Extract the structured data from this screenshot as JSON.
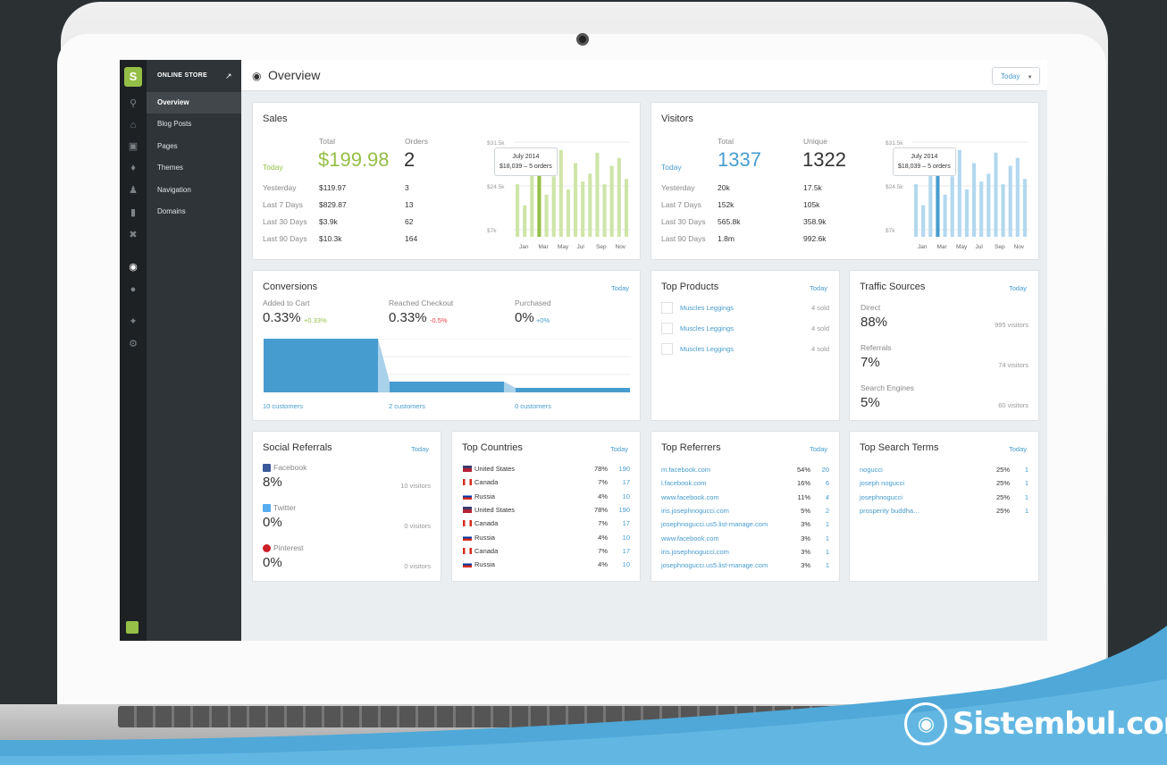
{
  "brand": {
    "watermark": "Sistembul.com"
  },
  "sidebar": {
    "header": "ONLINE STORE",
    "items": [
      {
        "label": "Overview"
      },
      {
        "label": "Blog Posts"
      },
      {
        "label": "Pages"
      },
      {
        "label": "Themes"
      },
      {
        "label": "Navigation"
      },
      {
        "label": "Domains"
      }
    ]
  },
  "topbar": {
    "title": "Overview",
    "range": "Today"
  },
  "sales": {
    "title": "Sales",
    "col_total": "Total",
    "col_orders": "Orders",
    "today_label": "Today",
    "today_total": "$199.98",
    "today_orders": "2",
    "rows": [
      {
        "label": "Yesterday",
        "total": "$119.97",
        "orders": "3"
      },
      {
        "label": "Last 7 Days",
        "total": "$829.87",
        "orders": "13"
      },
      {
        "label": "Last 30 Days",
        "total": "$3.9k",
        "orders": "62"
      },
      {
        "label": "Last 90 Days",
        "total": "$10.3k",
        "orders": "164"
      }
    ],
    "tooltip_title": "July 2014",
    "tooltip_value": "$18,039 – 5 orders"
  },
  "visitors": {
    "title": "Visitors",
    "col_total": "Total",
    "col_unique": "Unique",
    "today_label": "Today",
    "today_total": "1337",
    "today_unique": "1322",
    "rows": [
      {
        "label": "Yesterday",
        "total": "20k",
        "unique": "17.5k"
      },
      {
        "label": "Last 7 Days",
        "total": "152k",
        "unique": "105k"
      },
      {
        "label": "Last 30 Days",
        "total": "565.8k",
        "unique": "358.9k"
      },
      {
        "label": "Last 90 Days",
        "total": "1.8m",
        "unique": "992.6k"
      }
    ],
    "tooltip_title": "July 2014",
    "tooltip_value": "$18,039 – 5 orders"
  },
  "chart_data": [
    {
      "type": "bar",
      "title": "",
      "yticks": [
        "$31.5k",
        "$24.5k",
        "$7k"
      ],
      "xticks": [
        "Jan",
        "Mar",
        "May",
        "Jul",
        "Sep",
        "Nov"
      ],
      "highlight_index": 3,
      "color": "#95bf47",
      "values": [
        20,
        12,
        26,
        31,
        16,
        23,
        33,
        18,
        28,
        21,
        24,
        32,
        20,
        27,
        30,
        22
      ]
    },
    {
      "type": "bar",
      "title": "",
      "yticks": [
        "$31.5k",
        "$24.5k",
        "$7k"
      ],
      "xticks": [
        "Jan",
        "Mar",
        "May",
        "Jul",
        "Sep",
        "Nov"
      ],
      "highlight_index": 3,
      "color": "#479ccf",
      "values": [
        20,
        12,
        26,
        31,
        16,
        23,
        33,
        18,
        28,
        21,
        24,
        32,
        20,
        27,
        30,
        22
      ]
    },
    {
      "type": "area",
      "title": "Conversions",
      "categories": [
        "Added to Cart",
        "Reached Checkout",
        "Purchased"
      ],
      "values": [
        10,
        2,
        0
      ]
    }
  ],
  "conversions": {
    "title": "Conversions",
    "range": "Today",
    "steps": [
      {
        "label": "Added to Cart",
        "rate": "0.33%",
        "delta": "+0.33%",
        "delta_color": "#95bf47",
        "customers": "10 customers"
      },
      {
        "label": "Reached Checkout",
        "rate": "0.33%",
        "delta": "-0.5%",
        "delta_color": "#e44",
        "customers": "2 customers"
      },
      {
        "label": "Purchased",
        "rate": "0%",
        "delta": "+0%",
        "delta_color": "#479ccf",
        "customers": "0 customers"
      }
    ]
  },
  "top_products": {
    "title": "Top Products",
    "range": "Today",
    "items": [
      {
        "name": "Muscles Leggings",
        "sold": "4 sold"
      },
      {
        "name": "Muscles Leggings",
        "sold": "4 sold"
      },
      {
        "name": "Muscles Leggings",
        "sold": "4 sold"
      }
    ]
  },
  "traffic": {
    "title": "Traffic Sources",
    "range": "Today",
    "items": [
      {
        "label": "Direct",
        "pct": "88%",
        "visitors": "995 visitors"
      },
      {
        "label": "Referrals",
        "pct": "7%",
        "visitors": "74 visitors"
      },
      {
        "label": "Search Engines",
        "pct": "5%",
        "visitors": "60 visitors"
      }
    ]
  },
  "social": {
    "title": "Social Referrals",
    "range": "Today",
    "items": [
      {
        "label": "Facebook",
        "pct": "8%",
        "visitors": "10 visitors",
        "icon": "facebook-icon",
        "color": "#3b5998"
      },
      {
        "label": "Twitter",
        "pct": "0%",
        "visitors": "0 visitors",
        "icon": "twitter-icon",
        "color": "#55acee"
      },
      {
        "label": "Pinterest",
        "pct": "0%",
        "visitors": "0 visitors",
        "icon": "pinterest-icon",
        "color": "#cb2027"
      }
    ]
  },
  "countries": {
    "title": "Top Countries",
    "range": "Today",
    "items": [
      {
        "name": "United States",
        "pct": "78%",
        "count": "190",
        "flag": "us"
      },
      {
        "name": "Canada",
        "pct": "7%",
        "count": "17",
        "flag": "ca"
      },
      {
        "name": "Russia",
        "pct": "4%",
        "count": "10",
        "flag": "ru"
      },
      {
        "name": "United States",
        "pct": "78%",
        "count": "190",
        "flag": "us"
      },
      {
        "name": "Canada",
        "pct": "7%",
        "count": "17",
        "flag": "ca"
      },
      {
        "name": "Russia",
        "pct": "4%",
        "count": "10",
        "flag": "ru"
      },
      {
        "name": "Canada",
        "pct": "7%",
        "count": "17",
        "flag": "ca"
      },
      {
        "name": "Russia",
        "pct": "4%",
        "count": "10",
        "flag": "ru"
      }
    ]
  },
  "referrers": {
    "title": "Top Referrers",
    "range": "Today",
    "items": [
      {
        "site": "m.facebook.com",
        "pct": "54%",
        "count": "20"
      },
      {
        "site": "l.facebook.com",
        "pct": "16%",
        "count": "6"
      },
      {
        "site": "www.facebook.com",
        "pct": "11%",
        "count": "4"
      },
      {
        "site": "iris.josephnogucci.com",
        "pct": "5%",
        "count": "2"
      },
      {
        "site": "josephnogucci.us5.list-manage.com",
        "pct": "3%",
        "count": "1"
      },
      {
        "site": "www.facebook.com",
        "pct": "3%",
        "count": "1"
      },
      {
        "site": "iris.josephnogucci.com",
        "pct": "3%",
        "count": "1"
      },
      {
        "site": "josephnogucci.us5.list-manage.com",
        "pct": "3%",
        "count": "1"
      }
    ]
  },
  "search_terms": {
    "title": "Top Search Terms",
    "range": "Today",
    "items": [
      {
        "term": "nogucci",
        "pct": "25%",
        "count": "1"
      },
      {
        "term": "joseph nogucci",
        "pct": "25%",
        "count": "1"
      },
      {
        "term": "josephnogucci",
        "pct": "25%",
        "count": "1"
      },
      {
        "term": "prosperity buddha…",
        "pct": "25%",
        "count": "1"
      }
    ]
  }
}
